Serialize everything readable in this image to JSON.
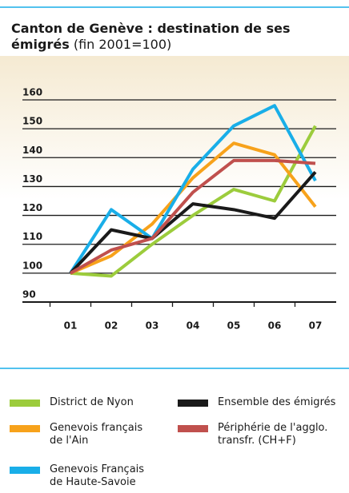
{
  "chart_data": {
    "type": "line",
    "title": "Canton de Genève : destination de ses émigrés",
    "subtitle": "(fin 2001=100)",
    "categories": [
      "01",
      "02",
      "03",
      "04",
      "05",
      "06",
      "07"
    ],
    "ylim": [
      90,
      160
    ],
    "yticks": [
      90,
      100,
      110,
      120,
      130,
      140,
      150,
      160
    ],
    "grid": true,
    "series": [
      {
        "name": "District de Nyon",
        "color": "#9ccc3c",
        "values": [
          100,
          99,
          110,
          120,
          129,
          125,
          151
        ]
      },
      {
        "name": "Genevois français\nde l'Ain",
        "color": "#f7a21b",
        "values": [
          100,
          106,
          117,
          133,
          145,
          141,
          123
        ]
      },
      {
        "name": "Genevois Français\nde Haute-Savoie",
        "color": "#19aee8",
        "values": [
          100,
          122,
          112,
          136,
          151,
          158,
          132
        ]
      },
      {
        "name": "Ensemble des émigrés",
        "color": "#1a1a1a",
        "values": [
          100,
          115,
          112,
          124,
          122,
          119,
          135
        ]
      },
      {
        "name": "Périphérie de l'agglo.\ntransfr. (CH+F)",
        "color": "#c0504d",
        "values": [
          100,
          108,
          112,
          128,
          139,
          139,
          138
        ]
      }
    ]
  }
}
